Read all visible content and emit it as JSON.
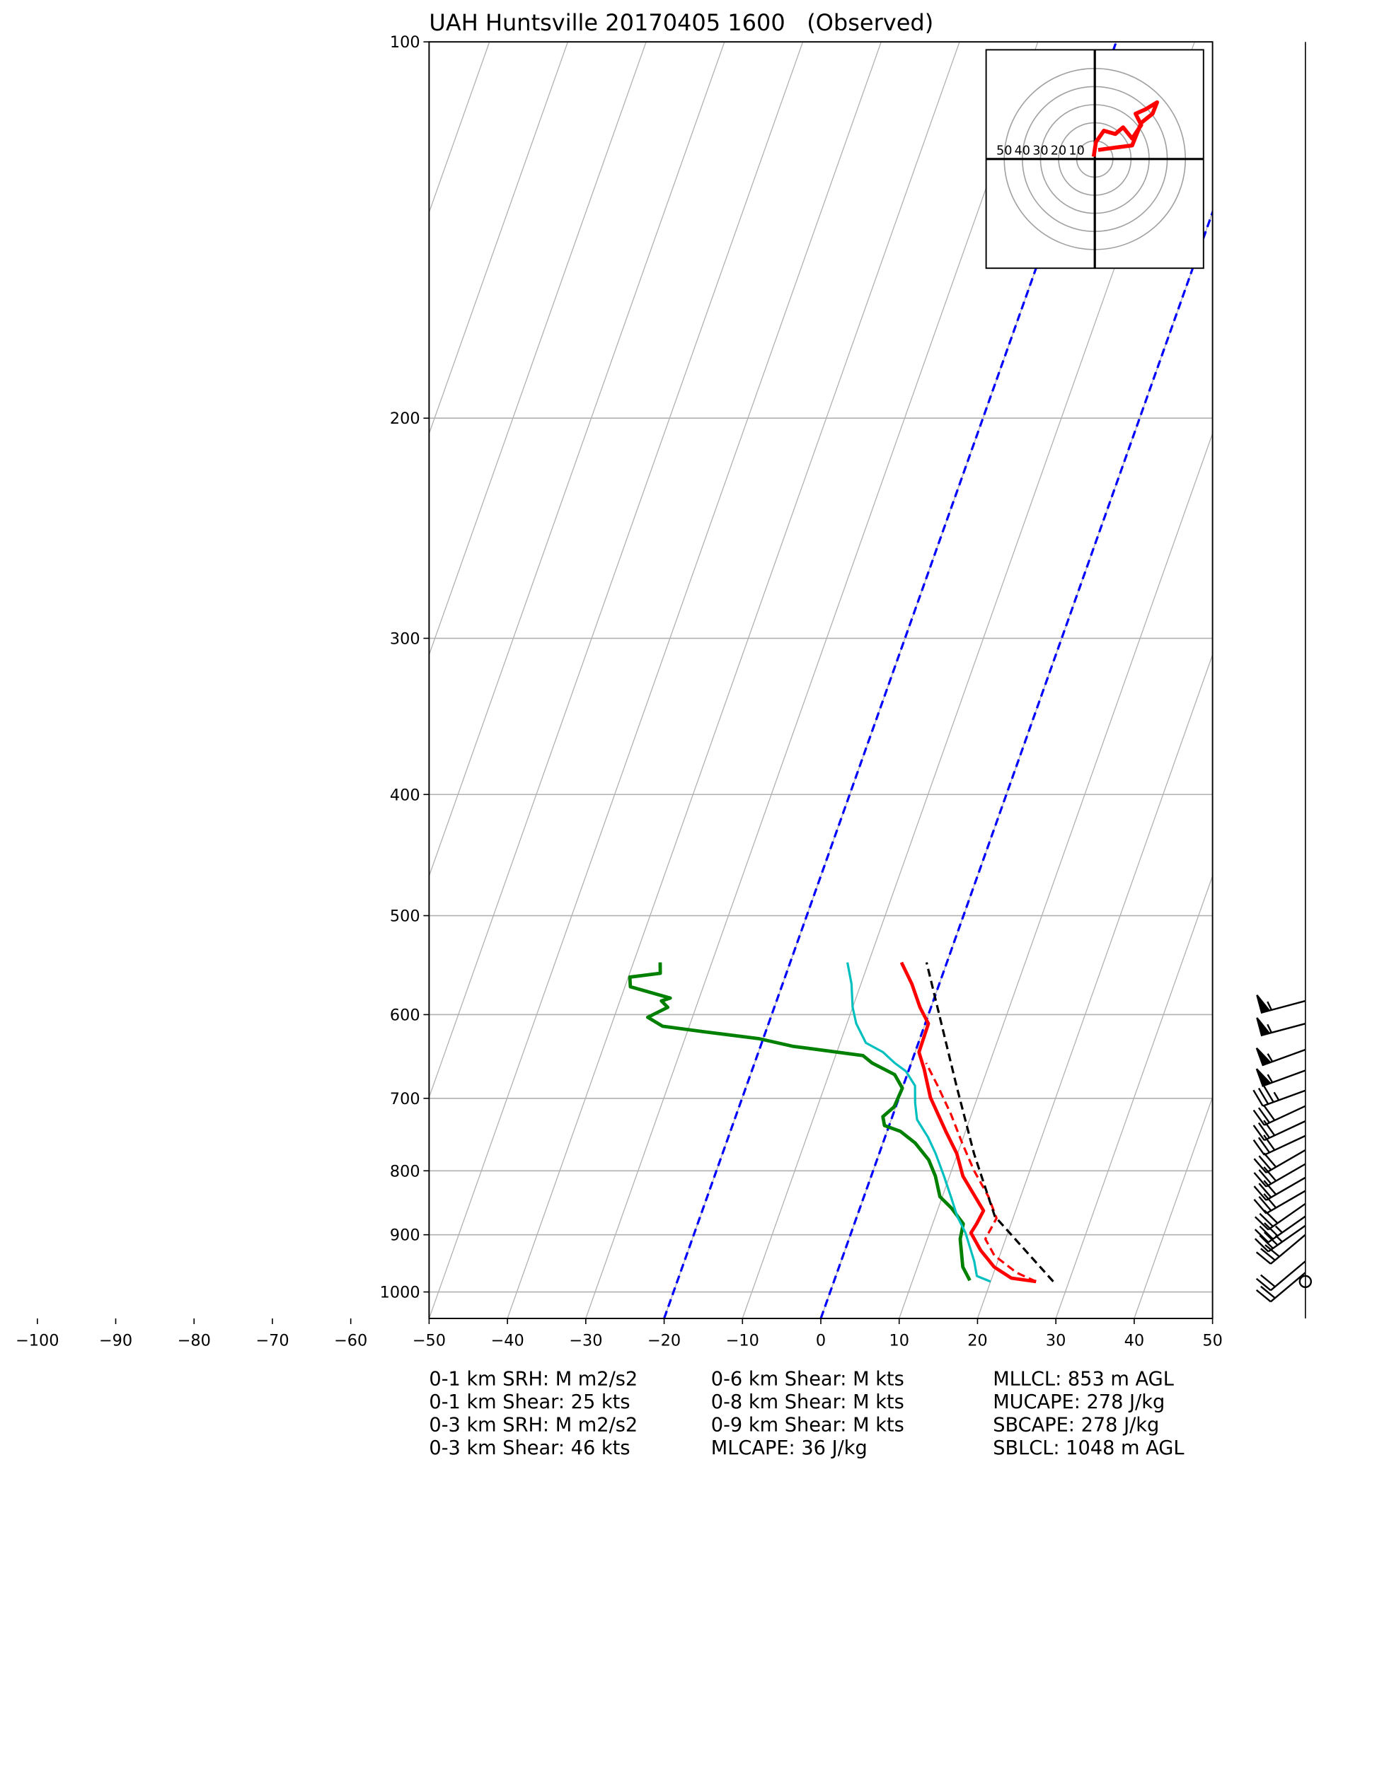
{
  "chart_data": {
    "type": "skewt",
    "title": "UAH Huntsville 20170405 1600   (Observed)",
    "xlim": [
      -50,
      50
    ],
    "xticks": [
      {
        "value": -100,
        "label": "−100"
      },
      {
        "value": -90,
        "label": "−90"
      },
      {
        "value": -80,
        "label": "−80"
      },
      {
        "value": -70,
        "label": "−70"
      },
      {
        "value": -60,
        "label": "−60"
      },
      {
        "value": -50,
        "label": "−50"
      },
      {
        "value": -40,
        "label": "−40"
      },
      {
        "value": -30,
        "label": "−30"
      },
      {
        "value": -20,
        "label": "−20"
      },
      {
        "value": -10,
        "label": "−10"
      },
      0,
      10,
      20,
      30,
      40,
      50
    ],
    "ylim": [
      1050,
      100
    ],
    "yticks": [
      100,
      200,
      300,
      400,
      500,
      600,
      700,
      800,
      900,
      1000
    ],
    "log_y": true,
    "grid": true,
    "dashed_isotherms": {
      "values": [
        -20,
        0
      ],
      "color": "#0000ff"
    },
    "series": [
      {
        "color": "#ff0000",
        "dashed": false,
        "pressure": [
          981,
          975,
          955,
          926,
          897,
          882,
          861,
          808,
          775,
          744,
          699,
          663,
          643,
          610,
          592,
          567,
          545
        ],
        "temperature": [
          25.8,
          22.5,
          19.8,
          17.3,
          15.3,
          15.6,
          15.9,
          11.7,
          9.9,
          7.5,
          4.0,
          1.9,
          0.5,
          0.4,
          -1.4,
          -3.5,
          -5.8
        ]
      },
      {
        "color": "#008000",
        "dashed": false,
        "pressure": [
          979,
          955,
          907,
          882,
          857,
          839,
          808,
          784,
          760,
          744,
          736,
          724,
          711,
          687,
          670,
          656,
          647,
          636,
          627,
          619,
          613,
          603,
          592,
          585,
          582,
          570,
          560,
          556,
          545
        ],
        "temperature": [
          17.3,
          15.8,
          14.2,
          13.9,
          11.7,
          9.7,
          8.2,
          6.6,
          4.1,
          1.7,
          -0.6,
          -1.2,
          -0.2,
          0.0,
          -1.6,
          -5.0,
          -6.5,
          -15.9,
          -20.6,
          -28.1,
          -33.4,
          -35.7,
          -33.6,
          -34.7,
          -33.7,
          -39.3,
          -39.8,
          -36.1,
          -36.6
        ]
      },
      {
        "color": "#00bfbf",
        "dashed": false,
        "pressure": [
          981,
          971,
          945,
          897,
          870,
          839,
          808,
          775,
          752,
          728,
          706,
          684,
          666,
          656,
          643,
          632,
          610,
          592,
          567,
          545
        ],
        "temperature": [
          20.0,
          18.0,
          17.0,
          14.6,
          12.8,
          11.1,
          9.3,
          7.2,
          5.5,
          3.3,
          2.3,
          1.5,
          -0.3,
          -2.1,
          -4.1,
          -6.7,
          -8.8,
          -10.0,
          -11.2,
          -12.7
        ]
      },
      {
        "color": "#ff0000",
        "dashed": true,
        "pressure": [
          981,
          965,
          935,
          907,
          873,
          839,
          800,
          760,
          721,
          684,
          656
        ],
        "temperature": [
          25.8,
          22.9,
          19.3,
          17.4,
          17.9,
          15.9,
          12.9,
          10.1,
          7.4,
          4.4,
          1.9
        ]
      },
      {
        "color": "#000000",
        "dashed": true,
        "pressure": [
          981,
          870,
          775,
          684,
          545
        ],
        "temperature": [
          28.0,
          17.6,
          12.1,
          6.8,
          -2.6
        ]
      }
    ],
    "wind_barbs": {
      "pressure": [
        585,
        610,
        640,
        665,
        690,
        710,
        730,
        750,
        770,
        790,
        810,
        830,
        850,
        870,
        885,
        900,
        945,
        965,
        981
      ],
      "speed": [
        55,
        55,
        55,
        55,
        35,
        30,
        30,
        30,
        30,
        30,
        30,
        30,
        30,
        35,
        35,
        30,
        20,
        20,
        0
      ],
      "direction": [
        255,
        255,
        250,
        250,
        250,
        245,
        245,
        245,
        240,
        240,
        240,
        240,
        235,
        235,
        235,
        230,
        230,
        230,
        0
      ]
    },
    "hodograph": {
      "color": "#ff0000",
      "lim": [
        -60,
        60
      ],
      "rings": [
        10,
        20,
        30,
        40,
        50
      ],
      "u": [
        -0.6,
        0.6,
        5,
        11.3,
        15.6,
        20.6,
        25.6,
        22.5,
        28.1,
        34.4,
        31.9,
        25.6,
        20.6,
        11.3,
        1.9
      ],
      "v": [
        1.3,
        9.4,
        15.6,
        13.8,
        17.5,
        11.3,
        18.8,
        25,
        27.5,
        31.3,
        25,
        20,
        7.5,
        6.3,
        5
      ]
    },
    "stats": [
      [
        "0-1 km SRH: M m2/s2",
        "0-1 km Shear: 25 kts",
        "0-3 km SRH: M m2/s2",
        "0-3 km Shear: 46 kts"
      ],
      [
        "0-6 km Shear: M kts",
        "0-8 km Shear: M kts",
        "0-9 km Shear: M kts",
        "MLCAPE: 36 J/kg"
      ],
      [
        "MLLCL: 853 m AGL",
        "MUCAPE: 278 J/kg",
        "SBCAPE: 278 J/kg",
        "SBLCL: 1048 m AGL"
      ]
    ]
  }
}
